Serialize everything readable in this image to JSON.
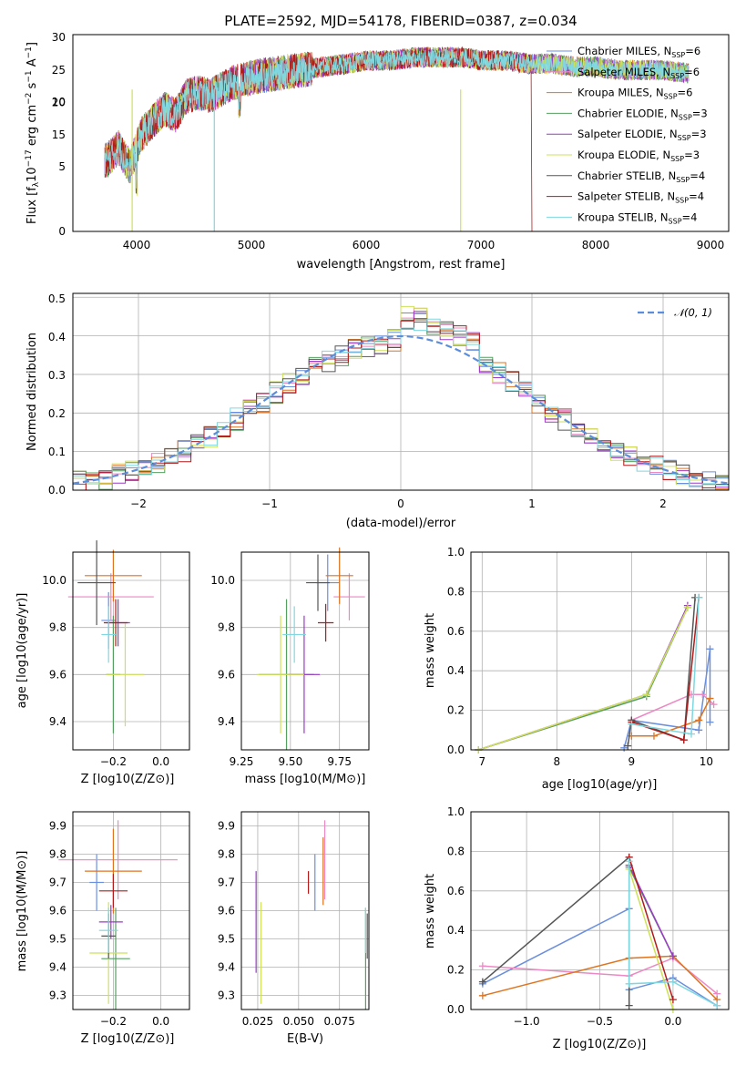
{
  "colors": {
    "series": [
      "#6a8fde",
      "#ec88c4",
      "#dd7420",
      "#55a060",
      "#9c3ac8",
      "#cfe15a",
      "#555555",
      "#b31a1a",
      "#7fd7df"
    ]
  },
  "spectrum": {
    "title": "PLATE=2592, MJD=54178, FIBERID=0387, z=0.034",
    "xlabel": "wavelength [Angstrom, rest frame]",
    "ylabel": "Flux [f_λ 10^−17 erg cm^−2 s^−1 A^−1]",
    "xticks": [
      "4000",
      "5000",
      "6000",
      "7000",
      "8000",
      "9000"
    ],
    "yticks": [
      "0",
      "5",
      "10",
      "15",
      "20",
      "25",
      "30"
    ],
    "legend": [
      "Chabrier MILES, N_SSP=6",
      "Salpeter MILES, N_SSP=6",
      "Kroupa MILES, N_SSP=6",
      "Chabrier ELODIE, N_SSP=3",
      "Salpeter ELODIE, N_SSP=3",
      "Kroupa ELODIE, N_SSP=3",
      "Chabrier STELIB, N_SSP=4",
      "Salpeter STELIB, N_SSP=4",
      "Kroupa STELIB, N_SSP=4"
    ]
  },
  "residuals": {
    "xlabel": "(data-model)/error",
    "ylabel": "Normed distribution",
    "xticks": [
      "−2",
      "−1",
      "0",
      "1",
      "2"
    ],
    "yticks": [
      "0.0",
      "0.1",
      "0.2",
      "0.3",
      "0.4",
      "0.5"
    ],
    "legend_label": "𝒩(0, 1)"
  },
  "panels": {
    "age_vs_z": {
      "xlabel": "Z [log10(Z/Z⊙)]",
      "ylabel": "age [log10(age/yr)]",
      "xticks": [
        "−0.2",
        "0.0"
      ],
      "yticks": [
        "9.4",
        "9.6",
        "9.8",
        "10.0"
      ]
    },
    "age_vs_mass": {
      "xlabel": "mass [log10(M/M⊙)]",
      "xticks": [
        "9.25",
        "9.50",
        "9.75"
      ],
      "yticks": [
        "9.4",
        "9.6",
        "9.8",
        "10.0"
      ]
    },
    "mw_vs_age": {
      "xlabel": "age [log10(age/yr)]",
      "ylabel": "mass weight",
      "xticks": [
        "7",
        "8",
        "9",
        "10"
      ],
      "yticks": [
        "0.0",
        "0.2",
        "0.4",
        "0.6",
        "0.8",
        "1.0"
      ]
    },
    "mass_vs_z": {
      "xlabel": "Z [log10(Z/Z⊙)]",
      "ylabel": "mass [log10(M/M⊙)]",
      "xticks": [
        "−0.2",
        "0.0"
      ],
      "yticks": [
        "9.3",
        "9.4",
        "9.5",
        "9.6",
        "9.7",
        "9.8",
        "9.9"
      ]
    },
    "mass_vs_ebv": {
      "xlabel": "E(B-V)",
      "xticks": [
        "0.025",
        "0.050",
        "0.075"
      ],
      "yticks": [
        "9.3",
        "9.4",
        "9.5",
        "9.6",
        "9.7",
        "9.8",
        "9.9"
      ]
    },
    "mw_vs_z": {
      "xlabel": "Z [log10(Z/Z⊙)]",
      "ylabel": "mass weight",
      "xticks": [
        "−1.0",
        "−0.5",
        "0.0"
      ],
      "yticks": [
        "0.0",
        "0.2",
        "0.4",
        "0.6",
        "0.8",
        "1.0"
      ]
    }
  },
  "chart_data": [
    {
      "type": "line",
      "title": "PLATE=2592, MJD=54178, FIBERID=0387, z=0.034",
      "xlabel": "wavelength [Angstrom, rest frame]",
      "ylabel": "Flux [f_λ 10^−17 erg cm^−2 s^−1 A^−1]",
      "xlim": [
        3400,
        9150
      ],
      "ylim": [
        0,
        30.5
      ],
      "x": [
        3700,
        3800,
        3900,
        4000,
        4100,
        4200,
        4300,
        4400,
        4500,
        4600,
        4700,
        4800,
        4900,
        5000,
        5200,
        5400,
        5600,
        5800,
        6000,
        6200,
        6400,
        6600,
        6800,
        7000,
        7200,
        7400,
        7600,
        7800,
        8000,
        8200,
        8400,
        8600,
        8800
      ],
      "series": [
        {
          "name": "Chabrier MILES, N_SSP=6",
          "values": [
            11,
            13,
            10,
            15,
            17,
            19,
            18,
            21,
            21.5,
            21,
            22,
            23,
            23.5,
            24,
            24.5,
            25,
            25.5,
            26,
            26.5,
            26.5,
            27,
            27,
            27,
            26.5,
            26.5,
            26,
            26,
            25.5,
            25.5,
            25,
            25,
            25,
            24.5
          ]
        }
      ],
      "legend_position": "upper right"
    },
    {
      "type": "area",
      "xlabel": "(data-model)/error",
      "ylabel": "Normed distribution",
      "xlim": [
        -2.5,
        2.5
      ],
      "ylim": [
        0,
        0.51
      ],
      "x": [
        -2.4,
        -2.2,
        -2.0,
        -1.8,
        -1.6,
        -1.4,
        -1.2,
        -1.0,
        -0.8,
        -0.6,
        -0.4,
        -0.2,
        0.0,
        0.2,
        0.4,
        0.6,
        0.8,
        1.0,
        1.2,
        1.4,
        1.6,
        1.8,
        2.0,
        2.2,
        2.4
      ],
      "series": [
        {
          "name": "Chabrier MILES, N_SSP=6",
          "values": [
            0.02,
            0.03,
            0.05,
            0.07,
            0.1,
            0.15,
            0.19,
            0.22,
            0.3,
            0.34,
            0.38,
            0.39,
            0.41,
            0.44,
            0.4,
            0.36,
            0.33,
            0.27,
            0.2,
            0.16,
            0.12,
            0.08,
            0.05,
            0.03,
            0.02
          ]
        }
      ],
      "reference_curve": "N(0,1)"
    },
    {
      "type": "scatter",
      "xlabel": "Z [log10(Z/Z⊙)]",
      "ylabel": "age [log10(age/yr)]",
      "x": [
        -0.22,
        -0.21,
        -0.2,
        -0.2,
        -0.18,
        -0.15,
        -0.27,
        -0.19,
        -0.22
      ],
      "y": [
        9.83,
        9.93,
        10.02,
        9.6,
        9.82,
        9.6,
        9.99,
        9.82,
        9.77
      ]
    },
    {
      "type": "scatter",
      "xlabel": "mass [log10(M/M⊙)]",
      "x": [
        9.69,
        9.8,
        9.75,
        9.48,
        9.57,
        9.45,
        9.64,
        9.68,
        9.52
      ],
      "y": [
        9.99,
        9.93,
        10.02,
        9.6,
        9.6,
        9.6,
        9.99,
        9.82,
        9.77
      ]
    },
    {
      "type": "line",
      "xlabel": "age [log10(age/yr)]",
      "ylabel": "mass weight",
      "x": [
        6.95,
        8.9,
        9.2,
        9.85,
        10.05
      ],
      "series": [
        {
          "name": "Chabrier MILES, N_SSP=6",
          "values": [
            0.0,
            0.15,
            0.05,
            0.1,
            0.51
          ]
        }
      ]
    },
    {
      "type": "scatter",
      "xlabel": "Z [log10(Z/Z⊙)]",
      "ylabel": "mass [log10(M/M⊙)]",
      "x": [
        -0.27,
        -0.18,
        -0.2,
        -0.19,
        -0.21,
        -0.22,
        -0.22,
        -0.2,
        -0.22
      ],
      "y": [
        9.7,
        9.78,
        9.74,
        9.43,
        9.56,
        9.45,
        9.51,
        9.67,
        9.53
      ]
    },
    {
      "type": "scatter",
      "xlabel": "E(B-V)",
      "x": [
        0.06,
        0.066,
        0.065,
        0.091,
        0.024,
        0.027,
        0.092,
        0.056,
        0.091
      ],
      "y": [
        9.7,
        9.78,
        9.74,
        9.43,
        9.56,
        9.45,
        9.51,
        9.7,
        9.53
      ]
    },
    {
      "type": "line",
      "xlabel": "Z [log10(Z/Z⊙)]",
      "ylabel": "mass weight",
      "x": [
        -1.3,
        -0.3,
        0.0,
        0.3
      ],
      "series": [
        {
          "name": "Chabrier MILES, N_SSP=6",
          "values": [
            0.13,
            0.51,
            0.16,
            0.02
          ]
        }
      ]
    }
  ]
}
